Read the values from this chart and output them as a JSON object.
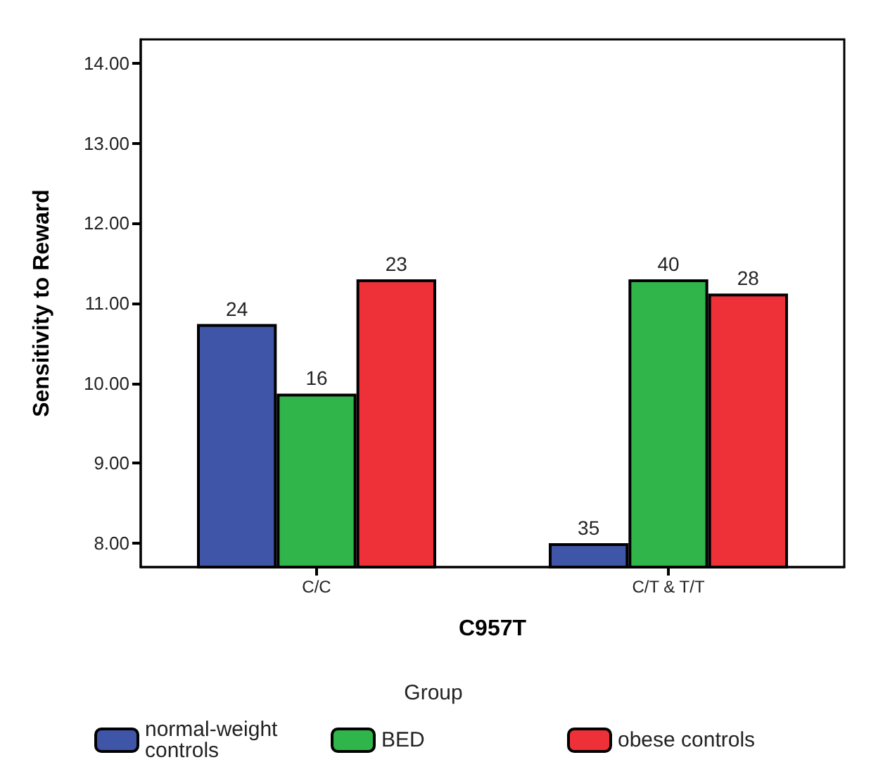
{
  "chart_data": {
    "type": "bar",
    "xlabel": "C957T",
    "ylabel": "Sensitivity to Reward",
    "legend_title": "Group",
    "categories": [
      "C/C",
      "C/T & T/T"
    ],
    "series": [
      {
        "name": "normal-weight controls",
        "color": "#3f55a8",
        "values": [
          10.74,
          8.0
        ]
      },
      {
        "name": "BED",
        "color": "#30b54a",
        "values": [
          9.87,
          11.3
        ]
      },
      {
        "name": "obese controls",
        "color": "#ee3038",
        "values": [
          11.3,
          11.12
        ]
      }
    ],
    "annotations": [
      "24",
      "16",
      "23",
      "35",
      "40",
      "28"
    ],
    "ylim": [
      7.7,
      14.3
    ],
    "yticks": [
      {
        "value": 8,
        "label": "8.00"
      },
      {
        "value": 9,
        "label": "9.00"
      },
      {
        "value": 10,
        "label": "10.00"
      },
      {
        "value": 11,
        "label": "11.00"
      },
      {
        "value": 12,
        "label": "12.00"
      },
      {
        "value": 13,
        "label": "13.00"
      },
      {
        "value": 14,
        "label": "14.00"
      }
    ],
    "grid": false,
    "legend": "bottom"
  }
}
